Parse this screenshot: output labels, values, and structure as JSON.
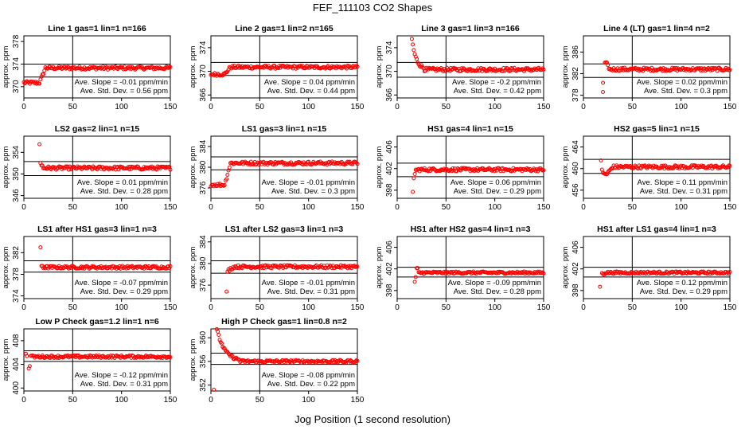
{
  "title": "FEF_111103  CO2 Shapes",
  "xlabel": "Jog Position (1 second resolution)",
  "ylabel": "approx. ppm",
  "colors": {
    "points": "#ff0000",
    "axes": "#000000"
  },
  "chart_data": [
    {
      "type": "scatter",
      "title": "Line 1 gas=1 lin=1 n=166",
      "xlim": [
        0,
        150
      ],
      "ylim": [
        368,
        379
      ],
      "yticks": [
        370,
        374,
        378
      ],
      "ref_lines": [
        371.7,
        374
      ],
      "slope_text": "Ave. Slope = -0.01 ppm/min",
      "std_text": "Ave. Std. Dev. = 0.56 ppm",
      "series": [
        {
          "start": 0,
          "end": 150,
          "pre": 370.7,
          "base": 373.3,
          "shape": "rise",
          "shape_end": 22
        }
      ]
    },
    {
      "type": "scatter",
      "title": "Line 2 gas=1 lin=2 n=165",
      "xlim": [
        0,
        150
      ],
      "ylim": [
        365.5,
        376
      ],
      "yticks": [
        366,
        370,
        374
      ],
      "ref_lines": [
        369.3,
        371.5
      ],
      "slope_text": "Ave. Slope = 0.04 ppm/min",
      "std_text": "Ave. Std. Dev. = 0.44 ppm",
      "series": [
        {
          "start": 0,
          "end": 150,
          "pre": 369.5,
          "base": 370.7,
          "shape": "rise",
          "shape_end": 20
        }
      ]
    },
    {
      "type": "scatter",
      "title": "Line 3 gas=1 lin=3 n=166",
      "xlim": [
        0,
        150
      ],
      "ylim": [
        365.5,
        376
      ],
      "yticks": [
        366,
        370,
        374
      ],
      "ref_lines": [
        369,
        371.5
      ],
      "slope_text": "Ave. Slope = -0.2 ppm/min",
      "std_text": "Ave. Std. Dev. = 0.42 ppm",
      "series": [
        {
          "start": 15,
          "end": 150,
          "pre": 375.5,
          "base": 370.3,
          "shape": "decay",
          "shape_end": 28
        }
      ]
    },
    {
      "type": "scatter",
      "title": "Line 4 (LT) gas=1 lin=4 n=2",
      "xlim": [
        0,
        150
      ],
      "ylim": [
        377.5,
        389
      ],
      "yticks": [
        378,
        382,
        386
      ],
      "ref_lines": [
        381.3,
        383.8
      ],
      "slope_text": "Ave. Slope = 0.02 ppm/min",
      "std_text": "Ave. Std. Dev. = 0.3 ppm",
      "series": [
        {
          "start": 22,
          "end": 150,
          "pre": 383.8,
          "base": 382.8,
          "shape": "spike",
          "shape_end": 26
        }
      ],
      "outliers": [
        [
          20,
          380.3
        ],
        [
          20,
          378.6
        ]
      ]
    },
    {
      "type": "scatter",
      "title": "LS2 gas=2 lin=1 n=15",
      "xlim": [
        0,
        150
      ],
      "ylim": [
        345.5,
        357
      ],
      "yticks": [
        346,
        350,
        354
      ],
      "ref_lines": [
        349.7,
        352.3
      ],
      "slope_text": "Ave. Slope = 0.01 ppm/min",
      "std_text": "Ave. Std. Dev. = 0.28 ppm",
      "series": [
        {
          "start": 18,
          "end": 150,
          "pre": 351.5,
          "base": 351.1,
          "shape": "flat",
          "shape_end": 20
        }
      ],
      "outliers": [
        [
          16,
          355.5
        ],
        [
          17,
          352
        ]
      ]
    },
    {
      "type": "scatter",
      "title": "LS1 gas=3 lin=1 n=15",
      "xlim": [
        0,
        150
      ],
      "ylim": [
        374,
        386
      ],
      "yticks": [
        376,
        380,
        384
      ],
      "ref_lines": [
        379.5,
        382
      ],
      "slope_text": "Ave. Slope = -0.01 ppm/min",
      "std_text": "Ave. Std. Dev. = 0.3 ppm",
      "series": [
        {
          "start": 0,
          "end": 150,
          "pre": 376.6,
          "base": 380.8,
          "shape": "rise",
          "shape_end": 20
        }
      ]
    },
    {
      "type": "scatter",
      "title": "HS1 gas=4 lin=1 n=15",
      "xlim": [
        0,
        150
      ],
      "ylim": [
        396.5,
        408
      ],
      "yticks": [
        398,
        402,
        406
      ],
      "ref_lines": [
        400.5,
        403
      ],
      "slope_text": "Ave. Slope = 0.06 ppm/min",
      "std_text": "Ave. Std. Dev. = 0.29 ppm",
      "series": [
        {
          "start": 19,
          "end": 150,
          "pre": 401.7,
          "base": 401.8,
          "shape": "flat",
          "shape_end": 22
        }
      ],
      "outliers": [
        [
          16,
          397.7
        ],
        [
          17,
          400.2
        ],
        [
          18,
          401
        ]
      ]
    },
    {
      "type": "scatter",
      "title": "HS2 gas=5 lin=1 n=15",
      "xlim": [
        0,
        150
      ],
      "ylim": [
        454.5,
        466
      ],
      "yticks": [
        456,
        460,
        464
      ],
      "ref_lines": [
        459.1,
        461.7
      ],
      "slope_text": "Ave. Slope = 0.11 ppm/min",
      "std_text": "Ave. Std. Dev. = 0.31 ppm",
      "series": [
        {
          "start": 20,
          "end": 150,
          "pre": 459,
          "base": 460.3,
          "shape": "rise",
          "shape_end": 30
        }
      ],
      "outliers": [
        [
          18,
          461.5
        ],
        [
          19,
          459.8
        ]
      ]
    },
    {
      "type": "scatter",
      "title": "LS1 after HS1 gas=3 lin=1 n=3",
      "xlim": [
        0,
        150
      ],
      "ylim": [
        373.5,
        385
      ],
      "yticks": [
        374,
        378,
        382
      ],
      "ref_lines": [
        378.4,
        380.5
      ],
      "slope_text": "Ave. Slope = -0.07 ppm/min",
      "std_text": "Ave. Std. Dev. = 0.29 ppm",
      "series": [
        {
          "start": 18,
          "end": 150,
          "pre": 379.6,
          "base": 379.3,
          "shape": "flat",
          "shape_end": 20
        }
      ],
      "outliers": [
        [
          17,
          383
        ]
      ]
    },
    {
      "type": "scatter",
      "title": "LS1 after LS2 gas=3 lin=1 n=3",
      "xlim": [
        0,
        150
      ],
      "ylim": [
        373.5,
        385
      ],
      "yticks": [
        376,
        380,
        384
      ],
      "ref_lines": [
        378.2,
        380.5
      ],
      "slope_text": "Ave. Slope = -0.01 ppm/min",
      "std_text": "Ave. Std. Dev. = 0.31 ppm",
      "series": [
        {
          "start": 18,
          "end": 150,
          "pre": 378.8,
          "base": 379.4,
          "shape": "rise",
          "shape_end": 24
        }
      ],
      "outliers": [
        [
          16,
          374.8
        ],
        [
          17,
          378.5
        ]
      ]
    },
    {
      "type": "scatter",
      "title": "HS1 after HS2 gas=4 lin=1 n=3",
      "xlim": [
        0,
        150
      ],
      "ylim": [
        396.5,
        408
      ],
      "yticks": [
        398,
        402,
        406
      ],
      "ref_lines": [
        400.5,
        402.3
      ],
      "slope_text": "Ave. Slope = -0.09 ppm/min",
      "std_text": "Ave. Std. Dev. = 0.28 ppm",
      "series": [
        {
          "start": 20,
          "end": 150,
          "pre": 402,
          "base": 401.3,
          "shape": "flat",
          "shape_end": 22
        }
      ],
      "outliers": [
        [
          18,
          399.6
        ],
        [
          19,
          400.5
        ]
      ]
    },
    {
      "type": "scatter",
      "title": "HS1 after LS1 gas=4 lin=1 n=3",
      "xlim": [
        0,
        150
      ],
      "ylim": [
        396.5,
        408
      ],
      "yticks": [
        398,
        402,
        406
      ],
      "ref_lines": [
        400.5,
        402.3
      ],
      "slope_text": "Ave. Slope = 0.12 ppm/min",
      "std_text": "Ave. Std. Dev. = 0.29 ppm",
      "series": [
        {
          "start": 19,
          "end": 150,
          "pre": 401.1,
          "base": 401.3,
          "shape": "flat",
          "shape_end": 22
        }
      ],
      "outliers": [
        [
          17,
          398.7
        ]
      ]
    },
    {
      "type": "scatter",
      "title": "Low P Check gas=1.2 lin=1 n=6",
      "xlim": [
        0,
        150
      ],
      "ylim": [
        399.5,
        410
      ],
      "yticks": [
        400,
        404,
        408
      ],
      "ref_lines": [
        404.5,
        406.3
      ],
      "slope_text": "Ave. Slope = -0.12 ppm/min",
      "std_text": "Ave. Std. Dev. = 0.31 ppm",
      "series": [
        {
          "start": 7,
          "end": 150,
          "pre": 405.5,
          "base": 405.3,
          "shape": "flat",
          "shape_end": 9
        }
      ],
      "outliers": [
        [
          2,
          405.8
        ],
        [
          3,
          405.4
        ],
        [
          5,
          403.3
        ],
        [
          6,
          403.7
        ]
      ]
    },
    {
      "type": "scatter",
      "title": "High P Check gas=1 lin=0.8 n=2",
      "xlim": [
        0,
        150
      ],
      "ylim": [
        351,
        361.5
      ],
      "yticks": [
        352,
        356,
        360
      ],
      "ref_lines": [
        355.5,
        357.4
      ],
      "slope_text": "Ave. Slope = -0.08 ppm/min",
      "std_text": "Ave. Std. Dev. = 0.22 ppm",
      "series": [
        {
          "start": 6,
          "end": 150,
          "pre": 361.5,
          "base": 356,
          "shape": "decay",
          "shape_end": 30
        }
      ],
      "outliers": [
        [
          3,
          351.2
        ]
      ]
    }
  ]
}
